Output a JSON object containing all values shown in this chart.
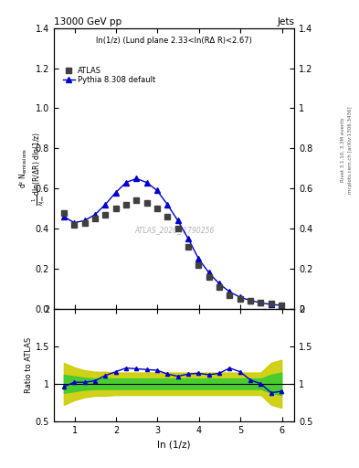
{
  "title": "13000 GeV pp",
  "title_right": "Jets",
  "subtitle": "ln(1/z) (Lund plane 2.33<ln(RΔ R)<2.67)",
  "watermark": "ATLAS_2020_I1790256",
  "right_label_top": "Rivet 3.1.10, 3.3M events",
  "right_label_bottom": "mcplots.cern.ch [arXiv:1306.3436]",
  "ylabel_main_line1": "d² Nₑₘᵢₛₛᵢₒₙₛ",
  "ylabel_main_line2": "1/Nⱼₑₜₛ dln(R/Δ R) dln (1/z)",
  "ylabel_ratio": "Ratio to ATLAS",
  "xlabel": "ln (1/z)",
  "xlim": [
    0.5,
    6.3
  ],
  "ylim_main": [
    0,
    1.4
  ],
  "ylim_ratio": [
    0.5,
    2.0
  ],
  "yticks_main": [
    0,
    0.2,
    0.4,
    0.6,
    0.8,
    1.0,
    1.2,
    1.4
  ],
  "yticks_ratio": [
    0.5,
    1.0,
    1.5,
    2.0
  ],
  "xticks": [
    1,
    2,
    3,
    4,
    5,
    6
  ],
  "atlas_x": [
    0.74,
    0.99,
    1.24,
    1.49,
    1.74,
    1.99,
    2.24,
    2.49,
    2.74,
    2.99,
    3.24,
    3.49,
    3.74,
    3.99,
    4.24,
    4.49,
    4.74,
    4.99,
    5.24,
    5.49,
    5.74,
    5.99
  ],
  "atlas_y": [
    0.48,
    0.42,
    0.43,
    0.45,
    0.47,
    0.5,
    0.52,
    0.54,
    0.53,
    0.5,
    0.46,
    0.4,
    0.31,
    0.22,
    0.16,
    0.11,
    0.07,
    0.05,
    0.04,
    0.03,
    0.025,
    0.02
  ],
  "pythia_x": [
    0.74,
    0.99,
    1.24,
    1.49,
    1.74,
    1.99,
    2.24,
    2.49,
    2.74,
    2.99,
    3.24,
    3.49,
    3.74,
    3.99,
    4.24,
    4.49,
    4.74,
    4.99,
    5.24,
    5.49,
    5.74,
    5.99
  ],
  "pythia_y": [
    0.46,
    0.43,
    0.44,
    0.47,
    0.52,
    0.58,
    0.63,
    0.65,
    0.63,
    0.59,
    0.52,
    0.44,
    0.35,
    0.25,
    0.18,
    0.125,
    0.085,
    0.058,
    0.042,
    0.03,
    0.022,
    0.018
  ],
  "ratio_x": [
    0.74,
    0.99,
    1.24,
    1.49,
    1.74,
    1.99,
    2.24,
    2.49,
    2.74,
    2.99,
    3.24,
    3.49,
    3.74,
    3.99,
    4.24,
    4.49,
    4.74,
    4.99,
    5.24,
    5.49,
    5.74,
    5.99
  ],
  "ratio_y": [
    0.96,
    1.02,
    1.02,
    1.04,
    1.11,
    1.16,
    1.21,
    1.2,
    1.19,
    1.18,
    1.13,
    1.1,
    1.13,
    1.14,
    1.12,
    1.14,
    1.21,
    1.16,
    1.05,
    1.0,
    0.88,
    0.9
  ],
  "band_green_lo": [
    0.88,
    0.9,
    0.92,
    0.93,
    0.93,
    0.93,
    0.93,
    0.93,
    0.93,
    0.93,
    0.93,
    0.93,
    0.93,
    0.93,
    0.93,
    0.93,
    0.93,
    0.93,
    0.93,
    0.93,
    0.88,
    0.85
  ],
  "band_green_hi": [
    1.12,
    1.1,
    1.08,
    1.07,
    1.07,
    1.07,
    1.07,
    1.07,
    1.07,
    1.07,
    1.07,
    1.07,
    1.07,
    1.07,
    1.07,
    1.07,
    1.07,
    1.07,
    1.07,
    1.07,
    1.12,
    1.15
  ],
  "band_yellow_lo": [
    0.72,
    0.78,
    0.82,
    0.84,
    0.84,
    0.85,
    0.85,
    0.85,
    0.85,
    0.85,
    0.85,
    0.85,
    0.85,
    0.85,
    0.85,
    0.85,
    0.85,
    0.85,
    0.85,
    0.85,
    0.72,
    0.68
  ],
  "band_yellow_hi": [
    1.28,
    1.22,
    1.18,
    1.16,
    1.16,
    1.15,
    1.15,
    1.15,
    1.15,
    1.15,
    1.15,
    1.15,
    1.15,
    1.15,
    1.15,
    1.15,
    1.15,
    1.15,
    1.15,
    1.15,
    1.28,
    1.32
  ],
  "color_atlas": "#404040",
  "color_pythia": "#0000cc",
  "color_green": "#33cc33",
  "color_yellow": "#cccc00",
  "atlas_marker": "s",
  "pythia_marker": "^",
  "atlas_markersize": 4,
  "pythia_markersize": 4,
  "ratio_markersize": 3
}
